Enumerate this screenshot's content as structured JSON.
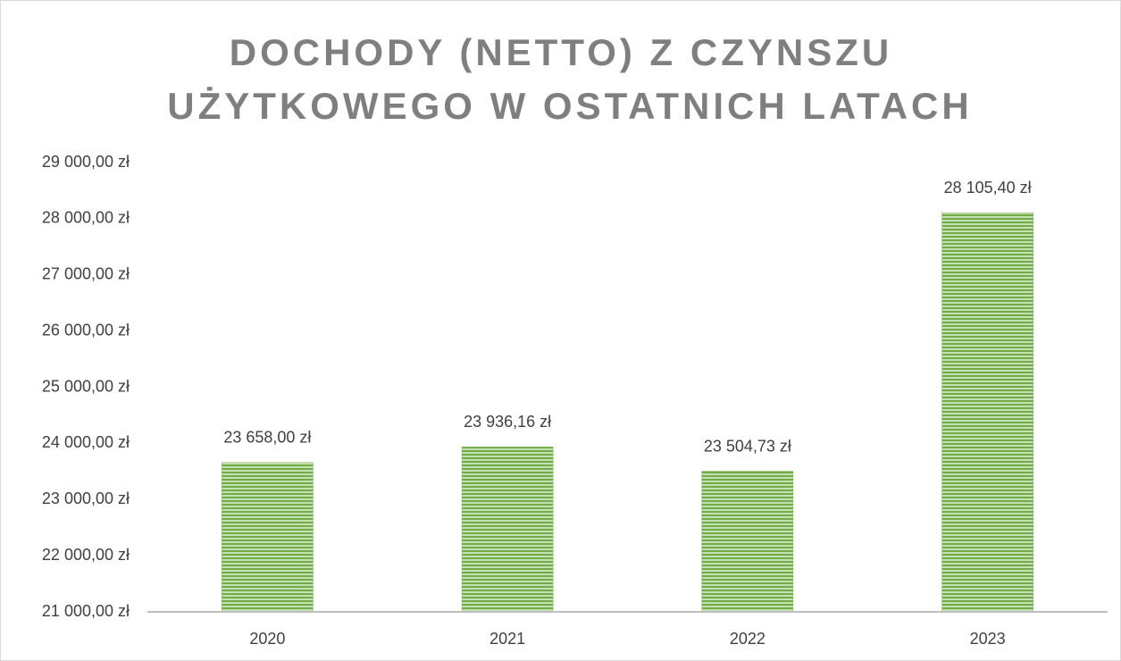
{
  "chart_data": {
    "type": "bar",
    "title": [
      "DOCHODY (NETTO) Z CZYNSZU",
      "UŻYTKOWEGO W OSTATNICH LATACH"
    ],
    "categories": [
      "2020",
      "2021",
      "2022",
      "2023"
    ],
    "values": [
      23658.0,
      23936.16,
      23504.73,
      28105.4
    ],
    "value_labels": [
      "23 658,00 zł",
      "23 936,16 zł",
      "23 504,73 zł",
      "28 105,40 zł"
    ],
    "color": "#70ad47",
    "ylim": [
      21000,
      29000
    ],
    "yticks": [
      {
        "value": 21000,
        "label": "21 000,00 zł"
      },
      {
        "value": 22000,
        "label": "22 000,00 zł"
      },
      {
        "value": 23000,
        "label": "23 000,00 zł"
      },
      {
        "value": 24000,
        "label": "24 000,00 zł"
      },
      {
        "value": 25000,
        "label": "25 000,00 zł"
      },
      {
        "value": 26000,
        "label": "26 000,00 zł"
      },
      {
        "value": 27000,
        "label": "27 000,00 zł"
      },
      {
        "value": 28000,
        "label": "28 000,00 zł"
      },
      {
        "value": 29000,
        "label": "29 000,00 zł"
      }
    ],
    "grid": false
  }
}
